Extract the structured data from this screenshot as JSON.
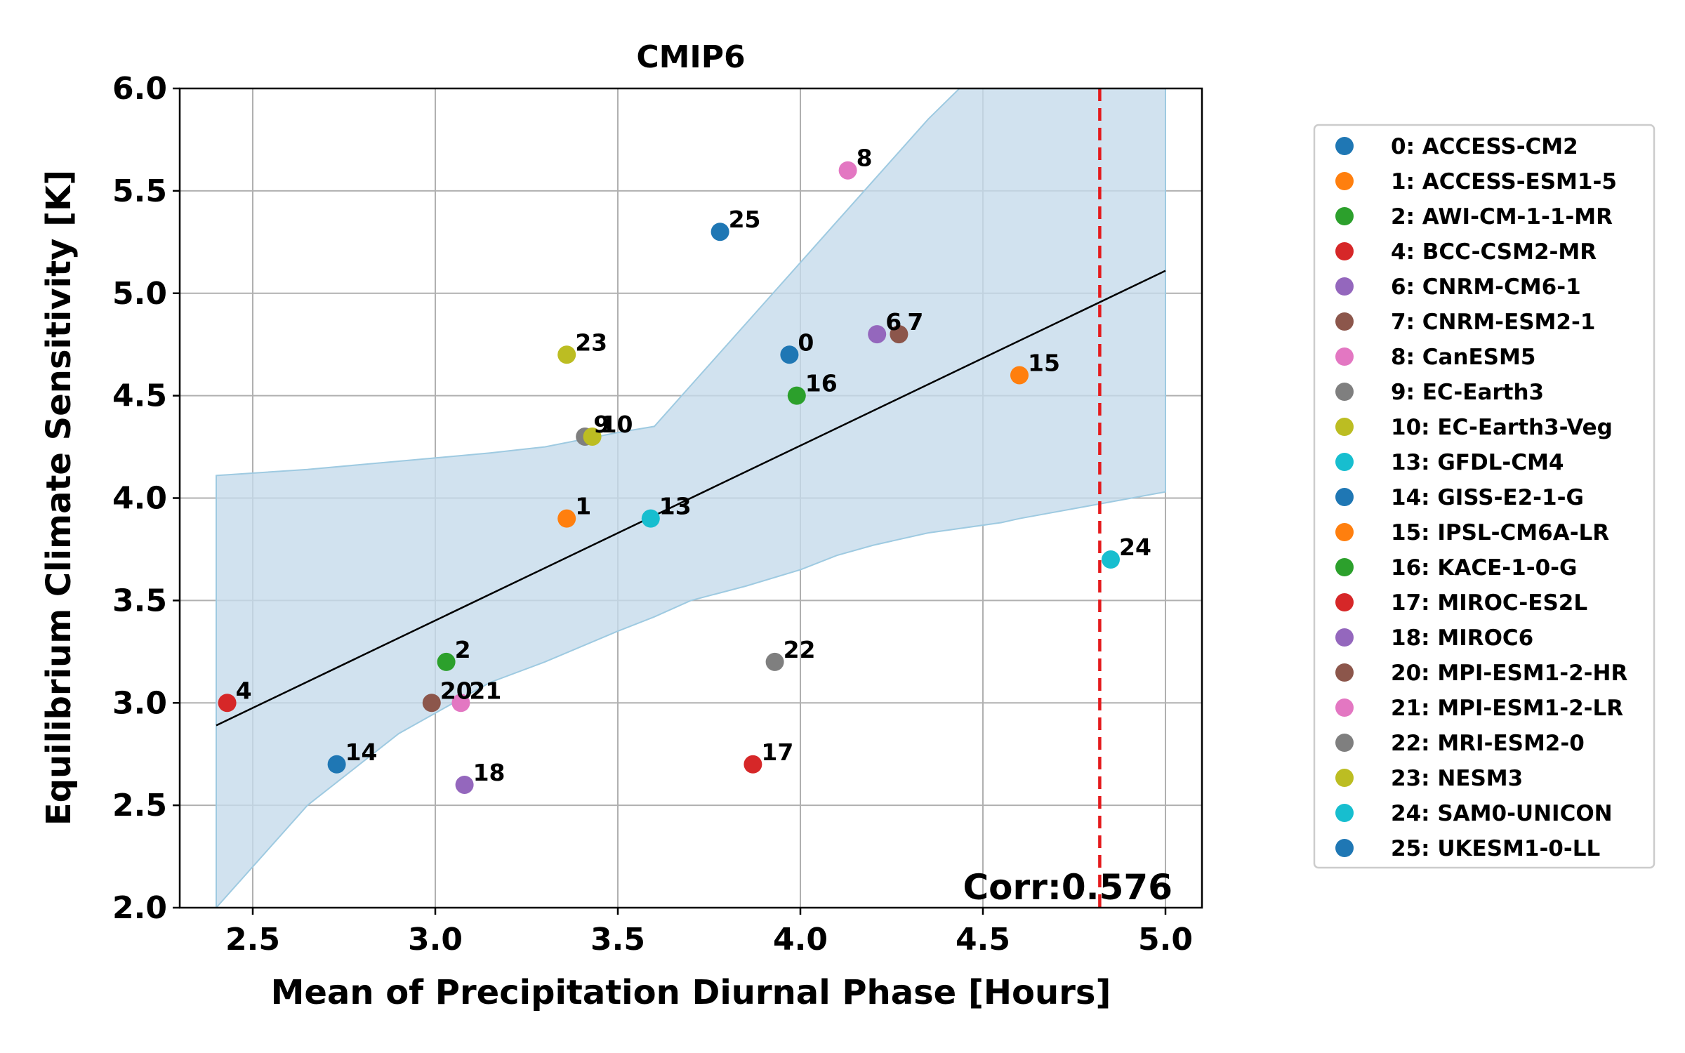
{
  "chart_data": {
    "type": "scatter",
    "title": "CMIP6",
    "xlabel": "Mean of Precipitation Diurnal Phase [Hours]",
    "ylabel": "Equilibrium Climate Sensitivity [K]",
    "xlim": [
      2.3,
      5.1
    ],
    "ylim": [
      2.0,
      6.0
    ],
    "xticks": [
      "2.5",
      "3.0",
      "3.5",
      "4.0",
      "4.5",
      "5.0"
    ],
    "yticks": [
      "2.0",
      "2.5",
      "3.0",
      "3.5",
      "4.0",
      "4.5",
      "5.0",
      "5.5",
      "6.0"
    ],
    "grid": true,
    "legend_position": "outside-right",
    "annotation": "Corr:0.576",
    "reference_line": {
      "x": 4.82,
      "color": "#e41a1c",
      "style": "dashed"
    },
    "fit_line": {
      "x": [
        2.4,
        5.0
      ],
      "y": [
        2.89,
        5.11
      ],
      "color": "#000000"
    },
    "confidence_band": {
      "color": "#c6dbeb",
      "x": [
        2.4,
        2.65,
        2.9,
        3.15,
        3.3,
        3.5,
        3.6,
        3.7,
        3.85,
        4.0,
        4.1,
        4.2,
        4.35,
        4.55,
        4.6,
        5.0
      ],
      "upper": [
        4.11,
        4.14,
        4.18,
        4.22,
        4.25,
        4.32,
        4.35,
        4.55,
        4.85,
        5.15,
        5.35,
        5.55,
        5.85,
        6.2,
        6.3,
        7.0
      ],
      "lower": [
        2.0,
        2.5,
        2.85,
        3.1,
        3.2,
        3.35,
        3.42,
        3.5,
        3.57,
        3.65,
        3.72,
        3.77,
        3.83,
        3.88,
        3.9,
        4.03
      ]
    },
    "points": [
      {
        "id": "0",
        "name": "ACCESS-CM2",
        "x": 3.97,
        "y": 4.7,
        "color": "#1f77b4"
      },
      {
        "id": "1",
        "name": "ACCESS-ESM1-5",
        "x": 3.36,
        "y": 3.9,
        "color": "#ff7f0e"
      },
      {
        "id": "2",
        "name": "AWI-CM-1-1-MR",
        "x": 3.03,
        "y": 3.2,
        "color": "#2ca02c"
      },
      {
        "id": "4",
        "name": "BCC-CSM2-MR",
        "x": 2.43,
        "y": 3.0,
        "color": "#d62728"
      },
      {
        "id": "6",
        "name": "CNRM-CM6-1",
        "x": 4.21,
        "y": 4.8,
        "color": "#9467bd"
      },
      {
        "id": "7",
        "name": "CNRM-ESM2-1",
        "x": 4.27,
        "y": 4.8,
        "color": "#8c564b"
      },
      {
        "id": "8",
        "name": "CanESM5",
        "x": 4.13,
        "y": 5.6,
        "color": "#e377c2"
      },
      {
        "id": "9",
        "name": "EC-Earth3",
        "x": 3.41,
        "y": 4.3,
        "color": "#7f7f7f"
      },
      {
        "id": "10",
        "name": "EC-Earth3-Veg",
        "x": 3.43,
        "y": 4.3,
        "color": "#bcbd22"
      },
      {
        "id": "13",
        "name": "GFDL-CM4",
        "x": 3.59,
        "y": 3.9,
        "color": "#17becf"
      },
      {
        "id": "14",
        "name": "GISS-E2-1-G",
        "x": 2.73,
        "y": 2.7,
        "color": "#1f77b4"
      },
      {
        "id": "15",
        "name": "IPSL-CM6A-LR",
        "x": 4.6,
        "y": 4.6,
        "color": "#ff7f0e"
      },
      {
        "id": "16",
        "name": "KACE-1-0-G",
        "x": 3.99,
        "y": 4.5,
        "color": "#2ca02c"
      },
      {
        "id": "17",
        "name": "MIROC-ES2L",
        "x": 3.87,
        "y": 2.7,
        "color": "#d62728"
      },
      {
        "id": "18",
        "name": "MIROC6",
        "x": 3.08,
        "y": 2.6,
        "color": "#9467bd"
      },
      {
        "id": "20",
        "name": "MPI-ESM1-2-HR",
        "x": 2.99,
        "y": 3.0,
        "color": "#8c564b"
      },
      {
        "id": "21",
        "name": "MPI-ESM1-2-LR",
        "x": 3.07,
        "y": 3.0,
        "color": "#e377c2"
      },
      {
        "id": "22",
        "name": "MRI-ESM2-0",
        "x": 3.93,
        "y": 3.2,
        "color": "#7f7f7f"
      },
      {
        "id": "23",
        "name": "NESM3",
        "x": 3.36,
        "y": 4.7,
        "color": "#bcbd22"
      },
      {
        "id": "24",
        "name": "SAM0-UNICON",
        "x": 4.85,
        "y": 3.7,
        "color": "#17becf"
      },
      {
        "id": "25",
        "name": "UKESM1-0-LL",
        "x": 3.78,
        "y": 5.3,
        "color": "#1f77b4"
      }
    ],
    "legend": [
      "0: ACCESS-CM2",
      "1: ACCESS-ESM1-5",
      "2: AWI-CM-1-1-MR",
      "4: BCC-CSM2-MR",
      "6: CNRM-CM6-1",
      "7: CNRM-ESM2-1",
      "8: CanESM5",
      "9: EC-Earth3",
      "10: EC-Earth3-Veg",
      "13: GFDL-CM4",
      "14: GISS-E2-1-G",
      "15: IPSL-CM6A-LR",
      "16: KACE-1-0-G",
      "17: MIROC-ES2L",
      "18: MIROC6",
      "20: MPI-ESM1-2-HR",
      "21: MPI-ESM1-2-LR",
      "22: MRI-ESM2-0",
      "23: NESM3",
      "24: SAM0-UNICON",
      "25: UKESM1-0-LL"
    ]
  }
}
